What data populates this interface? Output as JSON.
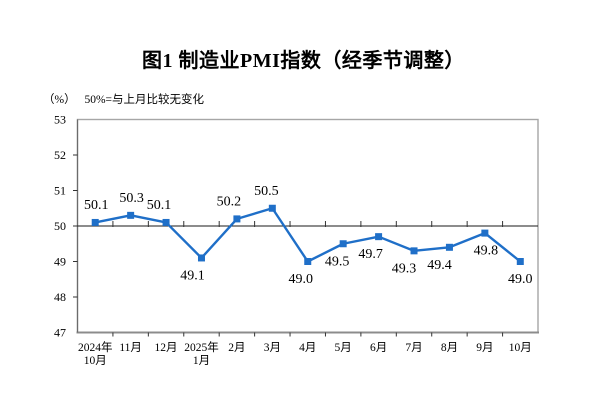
{
  "page_background": "#ffffff",
  "chart_data": {
    "type": "line",
    "title": "图1 制造业PMI指数（经季节调整）",
    "unit_label": "（%）",
    "reference_note": "50%=与上月比较无变化",
    "categories": [
      "2024年10月",
      "11月",
      "12月",
      "2025年1月",
      "2月",
      "3月",
      "4月",
      "5月",
      "6月",
      "7月",
      "8月",
      "9月",
      "10月"
    ],
    "category_lines": [
      [
        "2024年",
        "10月"
      ],
      [
        "11月"
      ],
      [
        "12月"
      ],
      [
        "2025年",
        "1月"
      ],
      [
        "2月"
      ],
      [
        "3月"
      ],
      [
        "4月"
      ],
      [
        "5月"
      ],
      [
        "6月"
      ],
      [
        "7月"
      ],
      [
        "8月"
      ],
      [
        "9月"
      ],
      [
        "10月"
      ]
    ],
    "series": [
      {
        "values": [
          50.1,
          50.3,
          50.1,
          49.1,
          50.2,
          50.5,
          49.0,
          49.5,
          49.7,
          49.3,
          49.4,
          49.8,
          49.0
        ],
        "color": "#1F6FC8"
      }
    ],
    "ylim": [
      47,
      53
    ],
    "yticks": [
      47,
      48,
      49,
      50,
      51,
      52,
      53
    ],
    "reference_line_value": 50,
    "grid": false,
    "legend": false,
    "data_label_positions": [
      "above",
      "above",
      "above",
      "below",
      "above",
      "above",
      "below",
      "below",
      "below",
      "below",
      "below",
      "below",
      "below"
    ],
    "data_label_dx": [
      1,
      1,
      -7,
      -9,
      -8,
      -6,
      -7,
      -6,
      -8,
      -10,
      -10,
      1,
      0
    ],
    "colors": {
      "line": "#1F6FC8",
      "marker": "#1F6FC8",
      "plot_border": "#A6A6A6",
      "plot_border_bottom": "#8C8C8C",
      "axis_line": "#6B6B6B",
      "tick": "#333333",
      "reference_line": "#1A1A1A",
      "text": "#000000"
    }
  }
}
